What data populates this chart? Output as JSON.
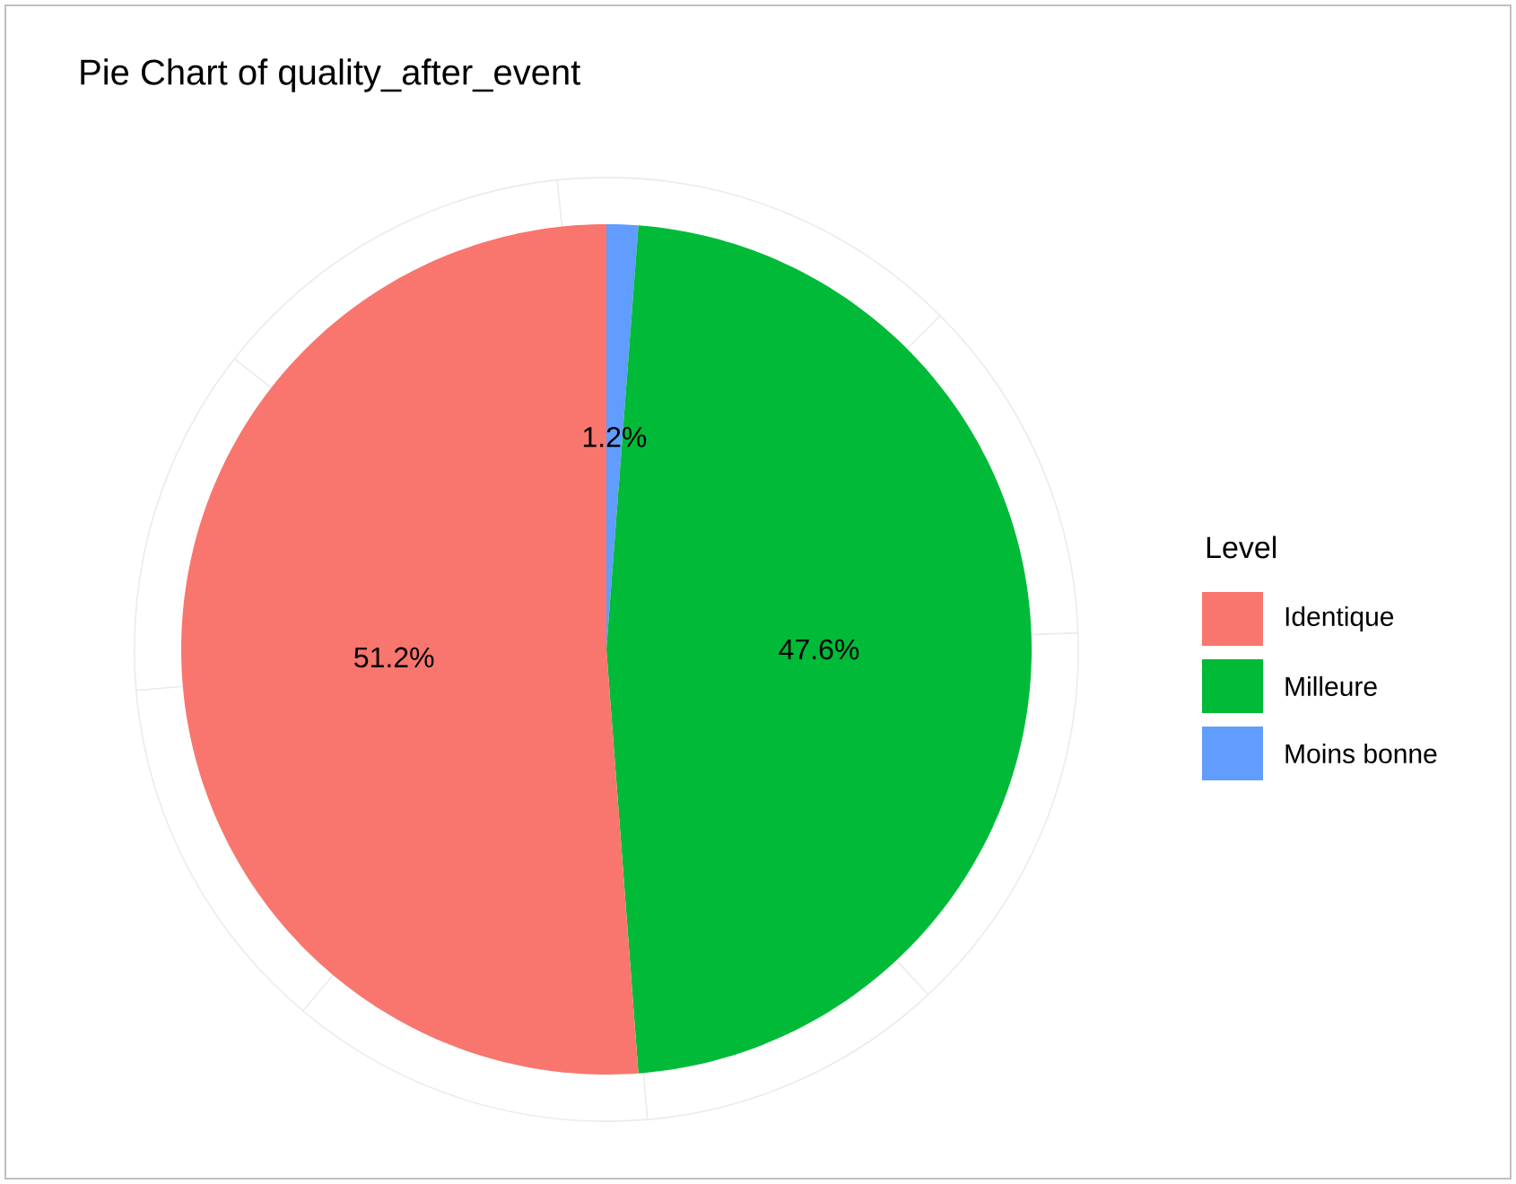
{
  "chart_data": {
    "type": "pie",
    "title": "Pie Chart of quality_after_event",
    "legend_title": "Level",
    "categories": [
      "Identique",
      "Milleure",
      "Moins bonne"
    ],
    "values": [
      51.2,
      47.6,
      1.2
    ],
    "colors": [
      "#f8766d",
      "#00ba38",
      "#619cff"
    ],
    "value_labels": [
      "51.2%",
      "47.6%",
      "1.2%"
    ],
    "legend": "right",
    "grid": true
  }
}
